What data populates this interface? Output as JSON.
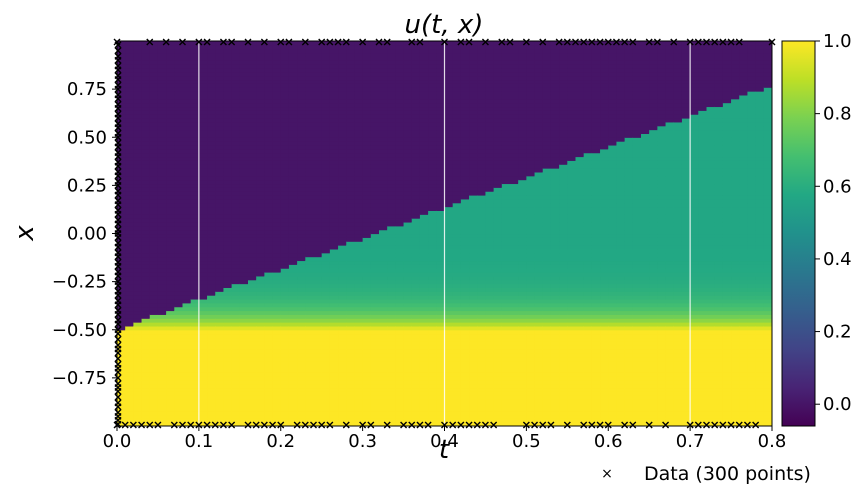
{
  "chart_data": {
    "type": "heatmap",
    "title": "u(t, x)",
    "xlabel": "t",
    "ylabel": "x",
    "xlim": [
      0.0,
      0.8
    ],
    "ylim": [
      -1.0,
      1.0
    ],
    "xticks": [
      "0.0",
      "0.1",
      "0.2",
      "0.3",
      "0.4",
      "0.5",
      "0.6",
      "0.7",
      "0.8"
    ],
    "xtick_values": [
      0.0,
      0.1,
      0.2,
      0.3,
      0.4,
      0.5,
      0.6,
      0.7,
      0.8
    ],
    "yticks": [
      "−0.75",
      "−0.50",
      "−0.25",
      "0.00",
      "0.25",
      "0.50",
      "0.75"
    ],
    "ytick_values": [
      -0.75,
      -0.5,
      -0.25,
      0.0,
      0.25,
      0.5,
      0.75
    ],
    "colorscale": "viridis",
    "clim": [
      -0.06,
      1.0
    ],
    "colorbar_ticks": [
      "0.0",
      "0.2",
      "0.4",
      "0.6",
      "0.8",
      "1.0"
    ],
    "colorbar_tick_values": [
      0.0,
      0.2,
      0.4,
      0.6,
      0.8,
      1.0
    ],
    "field": {
      "upper_value": 0.0,
      "lower_value": 1.0,
      "fan_value": 0.57,
      "lower_boundary_x": -0.5,
      "front_start": [
        0.0,
        -0.5
      ],
      "front_end": [
        0.8,
        0.77
      ]
    },
    "slice_lines_t": [
      0.1,
      0.4,
      0.7
    ],
    "data_points": {
      "count": 300,
      "marker": "x",
      "color": "#000000",
      "t0_x_samples": [
        -0.99,
        -0.97,
        -0.95,
        -0.93,
        -0.9,
        -0.88,
        -0.85,
        -0.82,
        -0.8,
        -0.78,
        -0.75,
        -0.72,
        -0.7,
        -0.68,
        -0.65,
        -0.62,
        -0.6,
        -0.58,
        -0.55,
        -0.52,
        -0.5,
        -0.47,
        -0.45,
        -0.42,
        -0.4,
        -0.37,
        -0.35,
        -0.32,
        -0.3,
        -0.27,
        -0.25,
        -0.22,
        -0.2,
        -0.17,
        -0.15,
        -0.12,
        -0.1,
        -0.07,
        -0.05,
        -0.02,
        0.0,
        0.02,
        0.05,
        0.07,
        0.1,
        0.12,
        0.15,
        0.17,
        0.2,
        0.22,
        0.25,
        0.27,
        0.3,
        0.32,
        0.35,
        0.37,
        0.4,
        0.42,
        0.45,
        0.47,
        0.5,
        0.52,
        0.55,
        0.57,
        0.6,
        0.62,
        0.65,
        0.67,
        0.7,
        0.72,
        0.75,
        0.77,
        0.8,
        0.82,
        0.85,
        0.87,
        0.9,
        0.92,
        0.95,
        0.98
      ],
      "top_t_samples": [
        0.0,
        0.04,
        0.06,
        0.08,
        0.1,
        0.11,
        0.13,
        0.14,
        0.16,
        0.18,
        0.2,
        0.21,
        0.23,
        0.25,
        0.26,
        0.27,
        0.28,
        0.3,
        0.32,
        0.33,
        0.36,
        0.37,
        0.4,
        0.42,
        0.43,
        0.45,
        0.47,
        0.48,
        0.5,
        0.52,
        0.54,
        0.55,
        0.56,
        0.57,
        0.58,
        0.59,
        0.6,
        0.61,
        0.62,
        0.63,
        0.65,
        0.66,
        0.68,
        0.7,
        0.71,
        0.72,
        0.73,
        0.74,
        0.75,
        0.76,
        0.8
      ],
      "bottom_t_samples": [
        0.0,
        0.01,
        0.02,
        0.03,
        0.04,
        0.05,
        0.07,
        0.08,
        0.09,
        0.1,
        0.11,
        0.12,
        0.13,
        0.14,
        0.16,
        0.17,
        0.18,
        0.19,
        0.2,
        0.22,
        0.23,
        0.24,
        0.25,
        0.26,
        0.28,
        0.3,
        0.31,
        0.33,
        0.35,
        0.36,
        0.37,
        0.38,
        0.4,
        0.41,
        0.42,
        0.43,
        0.44,
        0.45,
        0.46,
        0.5,
        0.51,
        0.52,
        0.53,
        0.55,
        0.57,
        0.58,
        0.59,
        0.6,
        0.62,
        0.63,
        0.65,
        0.67,
        0.7,
        0.71,
        0.72,
        0.73,
        0.74,
        0.75,
        0.76,
        0.77,
        0.78
      ]
    },
    "legend": {
      "label": "Data (300 points)",
      "placement": "bottom-right"
    }
  }
}
